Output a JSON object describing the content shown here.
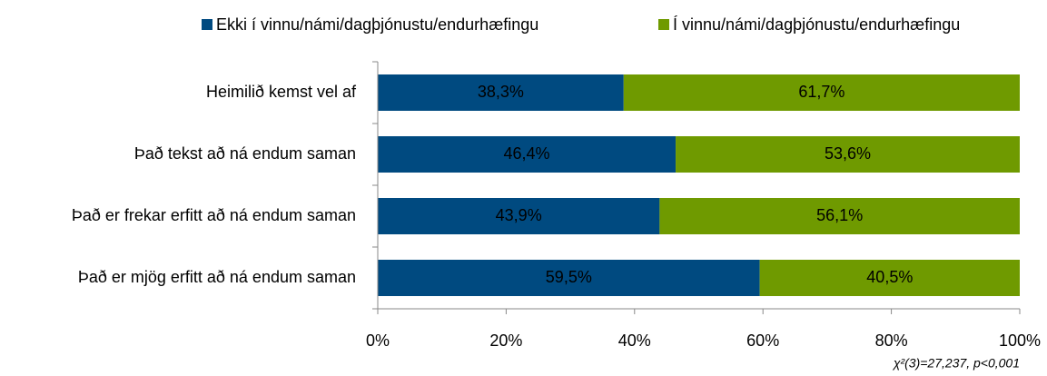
{
  "chart_data": {
    "type": "stacked-bar-horizontal",
    "categories": [
      "Heimilið kemst vel af",
      "Það tekst að ná endum saman",
      "Það er frekar erfitt að ná endum saman",
      "Það er mjög erfitt að ná endum saman"
    ],
    "series": [
      {
        "name": "Ekki í vinnu/námi/dagþjónustu/endurhæfingu",
        "color": "#004a80",
        "values": [
          38.3,
          46.4,
          43.9,
          59.5
        ],
        "value_labels": [
          "38,3%",
          "46,4%",
          "43,9%",
          "59,5%"
        ]
      },
      {
        "name": "Í vinnu/námi/dagþjónustu/endurhæfingu",
        "color": "#6f9a00",
        "values": [
          61.7,
          53.6,
          56.1,
          40.5
        ],
        "value_labels": [
          "61,7%",
          "53,6%",
          "56,1%",
          "40,5%"
        ]
      }
    ],
    "xlim": [
      0,
      100
    ],
    "xticks": [
      {
        "value": 0,
        "label": "0%"
      },
      {
        "value": 20,
        "label": "20%"
      },
      {
        "value": 40,
        "label": "40%"
      },
      {
        "value": 60,
        "label": "60%"
      },
      {
        "value": 80,
        "label": "80%"
      },
      {
        "value": 100,
        "label": "100%"
      }
    ],
    "legend": "top",
    "annotation": "χ²(3)=27,237, p<0,001"
  }
}
